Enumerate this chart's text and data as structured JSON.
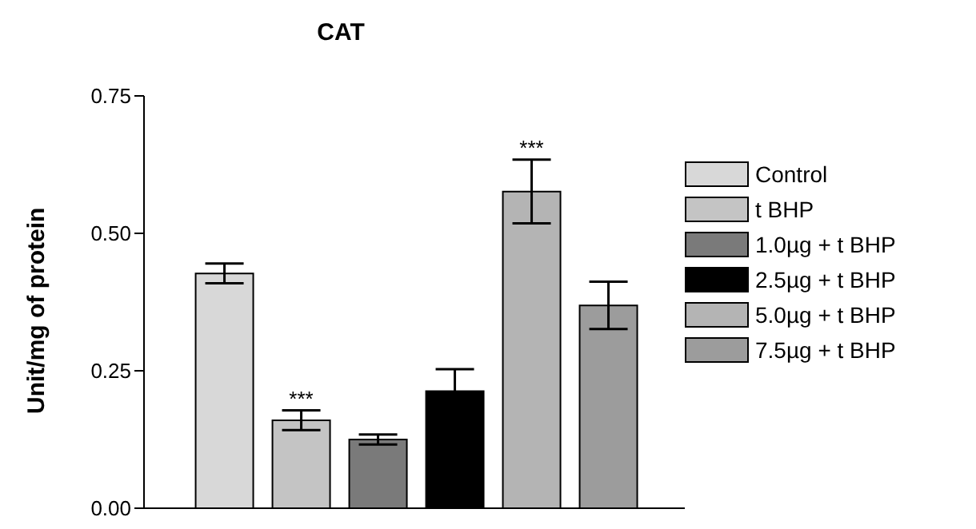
{
  "chart_data": {
    "type": "bar",
    "title": "CAT",
    "ylabel": "Unit/mg of protein",
    "categories": [
      null
    ],
    "series": [
      {
        "name": "Control",
        "color": "#d8d8d8",
        "values": [
          0.427
        ],
        "errors": [
          0.018
        ]
      },
      {
        "name": "t BHP",
        "color": "#c4c4c4",
        "values": [
          0.16
        ],
        "errors": [
          0.018
        ],
        "value_labels": [
          "***"
        ]
      },
      {
        "name": "1.0µg + t BHP",
        "color": "#7a7a7a",
        "values": [
          0.125
        ],
        "errors": [
          0.009
        ]
      },
      {
        "name": "2.5µg + t BHP",
        "color": "#000000",
        "values": [
          0.213
        ],
        "errors": [
          0.04
        ]
      },
      {
        "name": "5.0µg + t BHP",
        "color": "#b4b4b4",
        "values": [
          0.576
        ],
        "errors": [
          0.058
        ],
        "value_labels": [
          "***"
        ]
      },
      {
        "name": "7.5µg + t BHP",
        "color": "#9c9c9c",
        "values": [
          0.369
        ],
        "errors": [
          0.043
        ]
      }
    ],
    "ylim": [
      0,
      0.75
    ],
    "yticks": [
      {
        "value": 0,
        "label": "0.00"
      },
      {
        "value": 0.25,
        "label": "0.25"
      },
      {
        "value": 0.5,
        "label": "0.50"
      },
      {
        "value": 0.75,
        "label": "0.75"
      }
    ],
    "grid": false,
    "legend": "right"
  }
}
